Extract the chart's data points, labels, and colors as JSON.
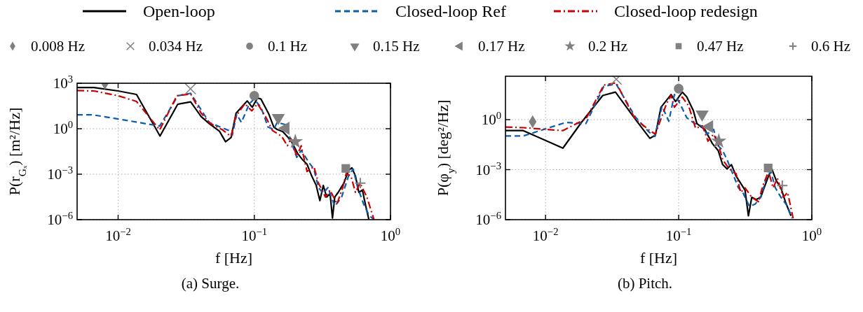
{
  "chart_data": [
    {
      "type": "line",
      "xlabel": "f [Hz]",
      "ylabel": "P(r$_{Gₓ}$) [m²/Hz]",
      "log": "xy",
      "grid": true,
      "legend": "top",
      "xlim": [
        0.005,
        1
      ],
      "ylim": [
        1e-06,
        1000
      ],
      "xticks": [
        {
          "value": 0.01,
          "label": "10$^{−2}$"
        },
        {
          "value": 0.1,
          "label": "10$^{−1}$"
        },
        {
          "value": 1,
          "label": "10$^{0}$"
        }
      ],
      "yticks": [
        {
          "value": 1e-06,
          "label": "10$^{−6}$"
        },
        {
          "value": 0.001,
          "label": "10$^{−3}$"
        },
        {
          "value": 1,
          "label": "10$^{0}$"
        },
        {
          "value": 1000,
          "label": "10$^{3}$"
        }
      ],
      "annotations": [
        "(a) Surge."
      ],
      "series": [
        {
          "name": "Open-loop",
          "color": "#000000",
          "line_style": "solid",
          "x": [
            0.005,
            0.00664,
            0.01,
            0.01365,
            0.0203,
            0.0274,
            0.0341,
            0.0407,
            0.0466,
            0.0555,
            0.0615,
            0.0675,
            0.0735,
            0.0887,
            0.0966,
            0.1056,
            0.112,
            0.128,
            0.139,
            0.147,
            0.162,
            0.186,
            0.209,
            0.226,
            0.244,
            0.264,
            0.285,
            0.303,
            0.321,
            0.34,
            0.36,
            0.375,
            0.39,
            0.413,
            0.455,
            0.492,
            0.521,
            0.553,
            0.586,
            0.622,
            0.659,
            0.693
          ],
          "values": [
            525,
            525,
            310,
            182,
            0.33,
            41,
            59,
            6.3,
            2.2,
            0.68,
            0.138,
            0.26,
            10.7,
            68,
            26,
            107,
            90,
            9,
            1.3,
            0.9,
            0.63,
            0.165,
            0.022,
            0.009,
            0.0045,
            0.00076,
            0.00018,
            1.8e-05,
            0.00018,
            3.1e-05,
            5.3e-05,
            1.3e-06,
            3.1e-05,
            6.3e-05,
            0.00026,
            0.0018,
            0.0026,
            0.00076,
            6.3e-05,
            9e-05,
            7.6e-06,
            1.07e-06
          ]
        },
        {
          "name": "Closed-loop Ref",
          "color": "#0b5cad",
          "line_style": "dashed",
          "x": [
            0.005,
            0.0065,
            0.01,
            0.0202,
            0.0275,
            0.0341,
            0.0407,
            0.0466,
            0.0649,
            0.0689,
            0.0743,
            0.0804,
            0.092,
            0.0995,
            0.112,
            0.126,
            0.139,
            0.147,
            0.172,
            0.186,
            0.205,
            0.221,
            0.254,
            0.274,
            0.296,
            0.321,
            0.347,
            0.39,
            0.438,
            0.492,
            0.532,
            0.575,
            0.634,
            0.698,
            0.755
          ],
          "values": [
            8.3,
            8.3,
            4.4,
            1.5,
            150,
            220,
            18,
            2.6,
            0.76,
            0.37,
            9,
            2.6,
            45,
            90,
            26,
            1.3,
            0.9,
            2.6,
            1.8,
            0.15,
            0.013,
            0.037,
            0.0053,
            0.0022,
            0.00013,
            5.3e-05,
            0.00013,
            7.6e-06,
            3.1e-05,
            0.00076,
            0.0022,
            0.00013,
            1.1e-05,
            1.8e-06,
            1.07e-06
          ]
        },
        {
          "name": "Closed-loop redesign",
          "color": "#cc0000",
          "line_style": "dashdot",
          "x": [
            0.005,
            0.00664,
            0.01,
            0.01365,
            0.0202,
            0.027,
            0.0341,
            0.0407,
            0.0475,
            0.0577,
            0.0675,
            0.073,
            0.0853,
            0.0958,
            0.1056,
            0.121,
            0.136,
            0.159,
            0.175,
            0.186,
            0.205,
            0.221,
            0.244,
            0.274,
            0.296,
            0.333,
            0.36,
            0.405,
            0.446,
            0.473,
            0.512,
            0.553,
            0.598,
            0.671,
            0.755
          ],
          "values": [
            330,
            310,
            150,
            63,
            0.83,
            150,
            195,
            10.7,
            2.2,
            0.9,
            0.31,
            6.3,
            45,
            15,
            45,
            6.3,
            0.76,
            0.31,
            0.075,
            0.22,
            0.015,
            0.075,
            0.0015,
            0.0031,
            0.00026,
            3.1e-05,
            9e-05,
            1.1e-05,
            0.00013,
            0.0011,
            0.00076,
            6.3e-05,
            0.00026,
            3.1e-05,
            1.07e-06
          ]
        },
        {
          "name": "0.008 Hz",
          "type": "scatter",
          "marker": "diamond",
          "color": "#808080",
          "x": [
            0.008
          ],
          "values": [
            1000
          ]
        },
        {
          "name": "0.034 Hz",
          "type": "scatter",
          "marker": "cross",
          "color": "#808080",
          "x": [
            0.034
          ],
          "values": [
            430
          ]
        },
        {
          "name": "0.1 Hz",
          "type": "scatter",
          "marker": "circle",
          "color": "#808080",
          "x": [
            0.1
          ],
          "values": [
            150
          ]
        },
        {
          "name": "0.15 Hz",
          "type": "scatter",
          "marker": "triangle-down",
          "color": "#808080",
          "x": [
            0.15
          ],
          "values": [
            5.3
          ]
        },
        {
          "name": "0.17 Hz",
          "type": "scatter",
          "marker": "triangle-left",
          "color": "#808080",
          "x": [
            0.17
          ],
          "values": [
            1.07
          ]
        },
        {
          "name": "0.2 Hz",
          "type": "scatter",
          "marker": "star",
          "color": "#808080",
          "x": [
            0.2
          ],
          "values": [
            0.14
          ]
        },
        {
          "name": "0.47 Hz",
          "type": "scatter",
          "marker": "square",
          "color": "#808080",
          "x": [
            0.47
          ],
          "values": [
            0.0024
          ]
        },
        {
          "name": "0.6 Hz",
          "type": "scatter",
          "marker": "plus",
          "color": "#808080",
          "x": [
            0.6
          ],
          "values": [
            0.00026
          ]
        }
      ]
    },
    {
      "type": "line",
      "xlabel": "f [Hz]",
      "ylabel": "P(φ$_{y}$) [deg²/Hz]",
      "log": "xy",
      "grid": true,
      "legend": "top",
      "xlim": [
        0.005,
        1
      ],
      "ylim": [
        1e-06,
        400
      ],
      "xticks": [
        {
          "value": 0.01,
          "label": "10$^{−2}$"
        },
        {
          "value": 0.1,
          "label": "10$^{−1}$"
        },
        {
          "value": 1,
          "label": "10$^{0}$"
        }
      ],
      "yticks": [
        {
          "value": 1e-06,
          "label": "10$^{−6}$"
        },
        {
          "value": 0.001,
          "label": "10$^{−3}$"
        },
        {
          "value": 1,
          "label": "10$^{0}$"
        }
      ],
      "annotations": [
        "(b) Pitch."
      ],
      "series": [
        {
          "name": "Open-loop",
          "color": "#000000",
          "line_style": "solid",
          "x": [
            0.005,
            0.0068,
            0.0135,
            0.0186,
            0.0269,
            0.0335,
            0.0471,
            0.0607,
            0.0668,
            0.0736,
            0.0877,
            0.0947,
            0.1064,
            0.115,
            0.129,
            0.137,
            0.148,
            0.157,
            0.179,
            0.198,
            0.214,
            0.231,
            0.249,
            0.27,
            0.292,
            0.315,
            0.334,
            0.354,
            0.382,
            0.413,
            0.438,
            0.473,
            0.501,
            0.542,
            0.586,
            0.633,
            0.697
          ],
          "values": [
            0.22,
            0.22,
            0.0195,
            0.68,
            28,
            45,
            1.1,
            0.076,
            0.115,
            5.5,
            32,
            12.3,
            45,
            23,
            3.4,
            0.58,
            0.36,
            0.26,
            0.037,
            0.014,
            0.002,
            0.0011,
            0.002,
            0.00041,
            0.000155,
            5.9e-05,
            1.7e-06,
            2.2e-05,
            1.6e-05,
            2.2e-05,
            8.1e-05,
            0.00041,
            0.0011,
            0.00021,
            8.1e-05,
            1.2e-05,
            1.7e-06
          ]
        },
        {
          "name": "Closed-loop Ref",
          "color": "#0b5cad",
          "line_style": "dashed",
          "x": [
            0.005,
            0.0068,
            0.0142,
            0.0201,
            0.0274,
            0.0339,
            0.0471,
            0.0594,
            0.0663,
            0.075,
            0.0843,
            0.0929,
            0.1024,
            0.115,
            0.132,
            0.148,
            0.163,
            0.183,
            0.198,
            0.214,
            0.231,
            0.259,
            0.281,
            0.303,
            0.34,
            0.375,
            0.413,
            0.455,
            0.492,
            0.532,
            0.586,
            0.658,
            0.711
          ],
          "values": [
            0.105,
            0.105,
            0.68,
            0.58,
            100,
            138,
            1.5,
            0.19,
            0.098,
            6.5,
            0.8,
            32,
            9,
            1.3,
            0.58,
            0.42,
            0.135,
            0.26,
            0.027,
            0.014,
            0.0039,
            0.00041,
            8.1e-05,
            4.3e-05,
            6.2e-06,
            8.5e-06,
            2.2e-05,
            0.0003,
            0.00078,
            8.1e-05,
            2.2e-05,
            6.2e-06,
            1.2e-06
          ]
        },
        {
          "name": "Closed-loop redesign",
          "color": "#cc0000",
          "line_style": "dashdot",
          "x": [
            0.005,
            0.0068,
            0.0135,
            0.0201,
            0.0274,
            0.0339,
            0.0471,
            0.0607,
            0.0668,
            0.081,
            0.0877,
            0.0929,
            0.1064,
            0.119,
            0.134,
            0.151,
            0.166,
            0.183,
            0.198,
            0.214,
            0.24,
            0.27,
            0.292,
            0.315,
            0.354,
            0.397,
            0.429,
            0.473,
            0.512,
            0.552,
            0.61,
            0.658,
            0.724
          ],
          "values": [
            0.36,
            0.33,
            0.22,
            1.1,
            118,
            162,
            1.1,
            0.22,
            0.135,
            9,
            28,
            5.5,
            23,
            6.5,
            0.3,
            0.42,
            0.051,
            0.135,
            0.037,
            0.0039,
            0.0011,
            0.00056,
            4.3e-05,
            8.1e-05,
            2.2e-05,
            1.2e-05,
            0.00011,
            0.00078,
            8.1e-05,
            0.0003,
            2.2e-05,
            4.3e-05,
            1.2e-06
          ]
        },
        {
          "name": "0.008 Hz",
          "type": "scatter",
          "marker": "diamond",
          "color": "#808080",
          "x": [
            0.008
          ],
          "values": [
            0.75
          ]
        },
        {
          "name": "0.034 Hz",
          "type": "scatter",
          "marker": "cross",
          "color": "#808080",
          "x": [
            0.034
          ],
          "values": [
            265
          ]
        },
        {
          "name": "0.1 Hz",
          "type": "scatter",
          "marker": "circle",
          "color": "#808080",
          "x": [
            0.1
          ],
          "values": [
            72
          ]
        },
        {
          "name": "0.15 Hz",
          "type": "scatter",
          "marker": "triangle-down",
          "color": "#808080",
          "x": [
            0.15
          ],
          "values": [
            2.1
          ]
        },
        {
          "name": "0.17 Hz",
          "type": "scatter",
          "marker": "triangle-left",
          "color": "#808080",
          "x": [
            0.17
          ],
          "values": [
            0.38
          ]
        },
        {
          "name": "0.2 Hz",
          "type": "scatter",
          "marker": "star",
          "color": "#808080",
          "x": [
            0.2
          ],
          "values": [
            0.051
          ]
        },
        {
          "name": "0.47 Hz",
          "type": "scatter",
          "marker": "square",
          "color": "#808080",
          "x": [
            0.47
          ],
          "values": [
            0.00126
          ]
        },
        {
          "name": "0.6 Hz",
          "type": "scatter",
          "marker": "plus",
          "color": "#808080",
          "x": [
            0.6
          ],
          "values": [
            0.00011
          ]
        }
      ]
    }
  ]
}
